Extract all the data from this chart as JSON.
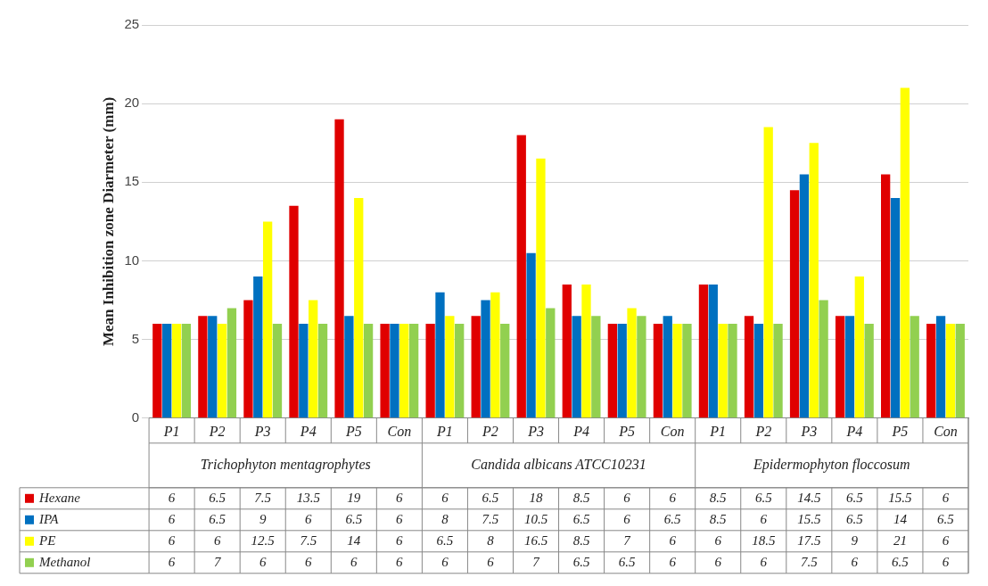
{
  "chart_data": {
    "type": "bar",
    "ylabel": "Mean Inhibition zone Diarmeter (mm)",
    "categories": [
      "P1",
      "P2",
      "P3",
      "P4",
      "P5",
      "Con",
      "P1",
      "P2",
      "P3",
      "P4",
      "P5",
      "Con",
      "P1",
      "P2",
      "P3",
      "P4",
      "P5",
      "Con"
    ],
    "annotations": [
      "Trichophyton mentagrophytes",
      "Candida albicans ATCC10231",
      "Epidermophyton floccosum"
    ],
    "series": [
      {
        "name": "Hexane",
        "color": "#e00000",
        "values": [
          6,
          6.5,
          7.5,
          13.5,
          19,
          6,
          6,
          6.5,
          18,
          8.5,
          6,
          6,
          8.5,
          6.5,
          14.5,
          6.5,
          15.5,
          6
        ]
      },
      {
        "name": "IPA",
        "color": "#0070c0",
        "values": [
          6,
          6.5,
          9,
          6,
          6.5,
          6,
          8,
          7.5,
          10.5,
          6.5,
          6,
          6.5,
          8.5,
          6,
          15.5,
          6.5,
          14,
          6.5
        ]
      },
      {
        "name": "PE",
        "color": "#ffff00",
        "values": [
          6,
          6,
          12.5,
          7.5,
          14,
          6,
          6.5,
          8,
          16.5,
          8.5,
          7,
          6,
          6,
          18.5,
          17.5,
          9,
          21,
          6
        ]
      },
      {
        "name": "Methanol",
        "color": "#92d050",
        "values": [
          6,
          7,
          6,
          6,
          6,
          6,
          6,
          6,
          7,
          6.5,
          6.5,
          6,
          6,
          6,
          7.5,
          6,
          6.5,
          6
        ]
      }
    ],
    "ylim": [
      0,
      25
    ],
    "yticks": [
      0,
      5,
      10,
      15,
      20,
      25
    ],
    "grid": "y",
    "legend": "bottom",
    "data_labels": true
  }
}
